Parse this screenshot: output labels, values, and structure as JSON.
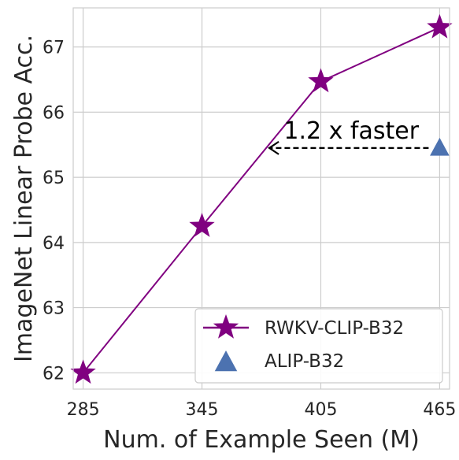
{
  "chart_data": {
    "type": "line",
    "title": "",
    "xlabel": "Num. of Example Seen (M)",
    "ylabel": "ImageNet Linear Probe Acc.",
    "xlim": [
      280,
      470
    ],
    "ylim": [
      61.75,
      67.6
    ],
    "xticks": [
      285,
      345,
      405,
      465
    ],
    "yticks": [
      62,
      63,
      64,
      65,
      66,
      67
    ],
    "grid": true,
    "legend_position": "lower-right",
    "series": [
      {
        "name": "RWKV-CLIP-B32",
        "marker": "star",
        "color": "#800080",
        "x": [
          285,
          345,
          405,
          465
        ],
        "y": [
          62.0,
          64.25,
          66.47,
          67.3
        ]
      },
      {
        "name": "ALIP-B32",
        "marker": "triangle",
        "color": "#4c72b0",
        "x": [
          465
        ],
        "y": [
          65.45
        ]
      }
    ],
    "annotations": [
      {
        "text": "1.2 x faster",
        "arrow_from": [
          465,
          65.45
        ],
        "arrow_to": [
          379,
          65.45
        ],
        "style": "dashed-arrow"
      }
    ]
  }
}
